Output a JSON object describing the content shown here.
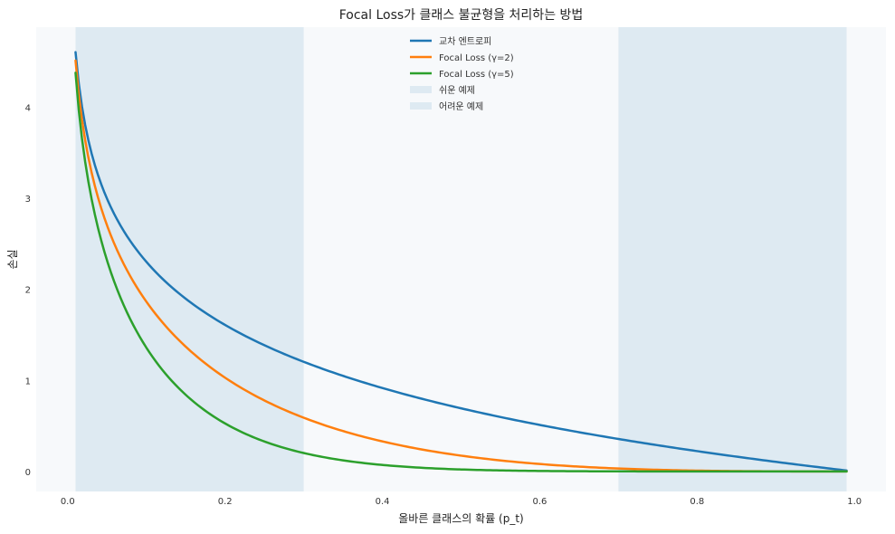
{
  "chart_data": {
    "type": "line",
    "title": "Focal Loss가 클래스 불균형을 처리하는 방법",
    "xlabel": "올바른 클래스의 확률 (p_t)",
    "ylabel": "손실",
    "xlim": [
      -0.04,
      1.04
    ],
    "ylim": [
      -0.22,
      4.88
    ],
    "xticks": [
      0.0,
      0.2,
      0.4,
      0.6,
      0.8,
      1.0
    ],
    "xtick_labels": [
      "0.0",
      "0.2",
      "0.4",
      "0.6",
      "0.8",
      "1.0"
    ],
    "yticks": [
      0,
      1,
      2,
      3,
      4
    ],
    "ytick_labels": [
      "0",
      "1",
      "2",
      "3",
      "4"
    ],
    "grid": false,
    "background": "#f7f9fb",
    "legend_position": "top-center",
    "x_domain": [
      0.01,
      0.99
    ],
    "series": [
      {
        "name": "교차 엔트로피",
        "color": "#1f77b4",
        "x": [
          0.01,
          0.02,
          0.03,
          0.05,
          0.07,
          0.1,
          0.15,
          0.2,
          0.25,
          0.3,
          0.35,
          0.4,
          0.45,
          0.5,
          0.55,
          0.6,
          0.65,
          0.7,
          0.75,
          0.8,
          0.85,
          0.9,
          0.95,
          0.99
        ],
        "values": [
          4.61,
          3.91,
          3.51,
          3.0,
          2.66,
          2.3,
          1.9,
          1.61,
          1.39,
          1.2,
          1.05,
          0.92,
          0.8,
          0.69,
          0.6,
          0.51,
          0.43,
          0.36,
          0.29,
          0.22,
          0.16,
          0.11,
          0.05,
          0.01
        ]
      },
      {
        "name": "Focal Loss (γ=2)",
        "color": "#ff7f0e",
        "x": [
          0.01,
          0.02,
          0.03,
          0.05,
          0.07,
          0.1,
          0.15,
          0.2,
          0.25,
          0.3,
          0.35,
          0.4,
          0.45,
          0.5,
          0.55,
          0.6,
          0.65,
          0.7,
          0.75,
          0.8,
          0.85,
          0.9,
          0.95,
          0.99
        ],
        "values": [
          4.52,
          3.76,
          3.3,
          2.71,
          2.3,
          1.87,
          1.37,
          1.03,
          0.78,
          0.59,
          0.45,
          0.33,
          0.24,
          0.17,
          0.12,
          0.082,
          0.053,
          0.032,
          0.018,
          0.0089,
          0.0037,
          0.0011,
          0.00013,
          1e-06
        ]
      },
      {
        "name": "Focal Loss (γ=5)",
        "color": "#2ca02c",
        "x": [
          0.01,
          0.02,
          0.03,
          0.05,
          0.07,
          0.1,
          0.15,
          0.2,
          0.25,
          0.3,
          0.35,
          0.4,
          0.45,
          0.5,
          0.55,
          0.6,
          0.65,
          0.7,
          0.75,
          0.8,
          0.85,
          0.9,
          0.95,
          0.99
        ],
        "values": [
          4.38,
          3.54,
          3.0,
          2.32,
          1.86,
          1.36,
          0.84,
          0.53,
          0.33,
          0.2,
          0.12,
          0.072,
          0.04,
          0.022,
          0.011,
          0.0052,
          0.0022,
          0.00087,
          0.00028,
          7e-05,
          1e-05,
          1e-06,
          0.0,
          0.0
        ]
      }
    ],
    "spans": [
      {
        "name": "쉬운 예제",
        "x_start": 0.01,
        "x_end": 0.3,
        "color": "#d3e4ee"
      },
      {
        "name": "어려운 예제",
        "x_start": 0.7,
        "x_end": 0.99,
        "color": "#d3e4ee"
      }
    ]
  }
}
